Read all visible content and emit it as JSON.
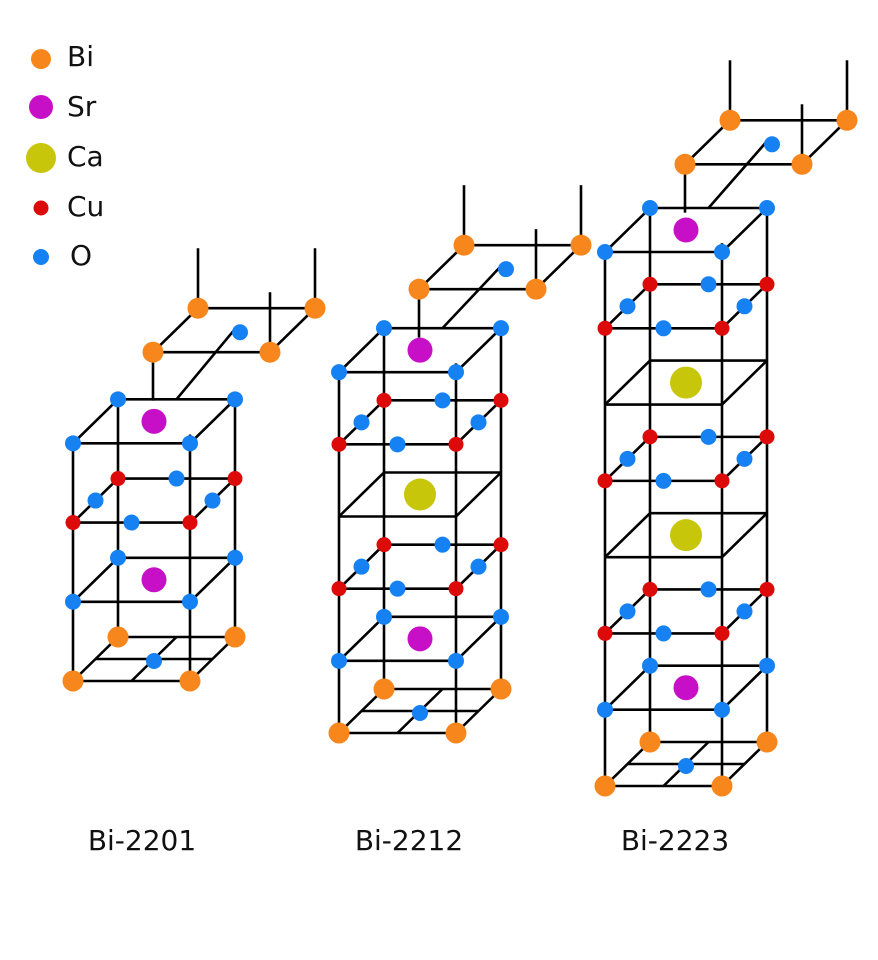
{
  "colors": {
    "Bi": "#f7861d",
    "Sr": "#c80fc8",
    "Ca": "#c8c60a",
    "Cu": "#dd0a0a",
    "O": "#1581f3",
    "line": "#000000"
  },
  "legend": [
    {
      "element": "Bi",
      "label": "Bi",
      "icon": "orange-circle-icon"
    },
    {
      "element": "Sr",
      "label": "Sr",
      "icon": "magenta-circle-icon"
    },
    {
      "element": "Ca",
      "label": "Ca",
      "icon": "yellow-circle-icon"
    },
    {
      "element": "Cu",
      "label": "Cu",
      "icon": "red-circle-icon"
    },
    {
      "element": "O",
      "label": "O",
      "icon": "blue-circle-icon"
    }
  ],
  "structures": [
    {
      "id": "bi2201",
      "caption": "Bi-2201",
      "layers": [
        "Bi",
        "SrO",
        "CuO2",
        "SrO",
        "Bi"
      ]
    },
    {
      "id": "bi2212",
      "caption": "Bi-2212",
      "layers": [
        "Bi",
        "SrO",
        "CuO2",
        "Ca",
        "CuO2",
        "SrO",
        "Bi"
      ]
    },
    {
      "id": "bi2223",
      "caption": "Bi-2223",
      "layers": [
        "Bi",
        "SrO",
        "CuO2",
        "Ca",
        "CuO2",
        "Ca",
        "CuO2",
        "SrO",
        "Bi"
      ]
    }
  ]
}
